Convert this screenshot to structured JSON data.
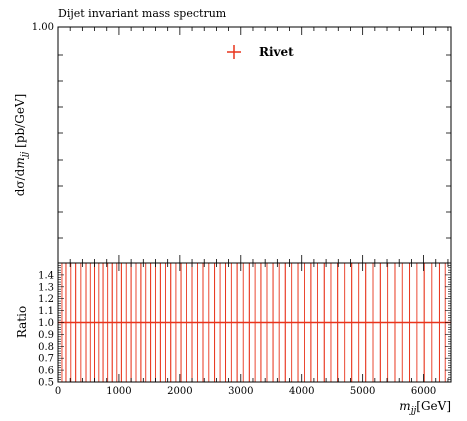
{
  "chart_data": [
    {
      "type": "line",
      "title": "Dijet invariant mass spectrum",
      "ylabel": "dσ / dm_jj [pb/GeV]",
      "y_ticks": [
        "1.00"
      ],
      "xlim": [
        0,
        6450
      ],
      "legend": {
        "placement": "top-center",
        "entries": [
          {
            "name": "Rivet",
            "color": "#e8341c",
            "marker": "cross"
          }
        ]
      },
      "grid": false,
      "series": []
    },
    {
      "type": "line",
      "ylabel": "Ratio",
      "xlabel": "m_jj [GeV]",
      "xlim": [
        0,
        6450
      ],
      "ylim": [
        0.5,
        1.5
      ],
      "x_ticks": [
        0,
        1000,
        2000,
        3000,
        4000,
        5000,
        6000
      ],
      "y_ticks": [
        "0.5",
        "0.6",
        "0.7",
        "0.8",
        "0.9",
        "1.0",
        "1.1",
        "1.2",
        "1.3",
        "1.4"
      ],
      "reference_line": 1.0,
      "bin_edges": [
        0,
        130,
        290,
        460,
        600,
        740,
        890,
        1040,
        1200,
        1360,
        1520,
        1680,
        1850,
        2020,
        2200,
        2380,
        2570,
        2750,
        2940,
        3140,
        3330,
        3530,
        3730,
        3940,
        4150,
        4370,
        4590,
        4820,
        5050,
        5290,
        5530,
        5770,
        6010,
        6260,
        6450
      ],
      "bin_band": [
        0.5,
        1.5
      ],
      "color": "#e8341c"
    }
  ],
  "texts": {
    "title": "Dijet invariant mass spectrum",
    "main_y_tick": "1.00",
    "legend_label": "Rivet",
    "ratio_ylabel": "Ratio",
    "x_unit": "[GeV]"
  }
}
